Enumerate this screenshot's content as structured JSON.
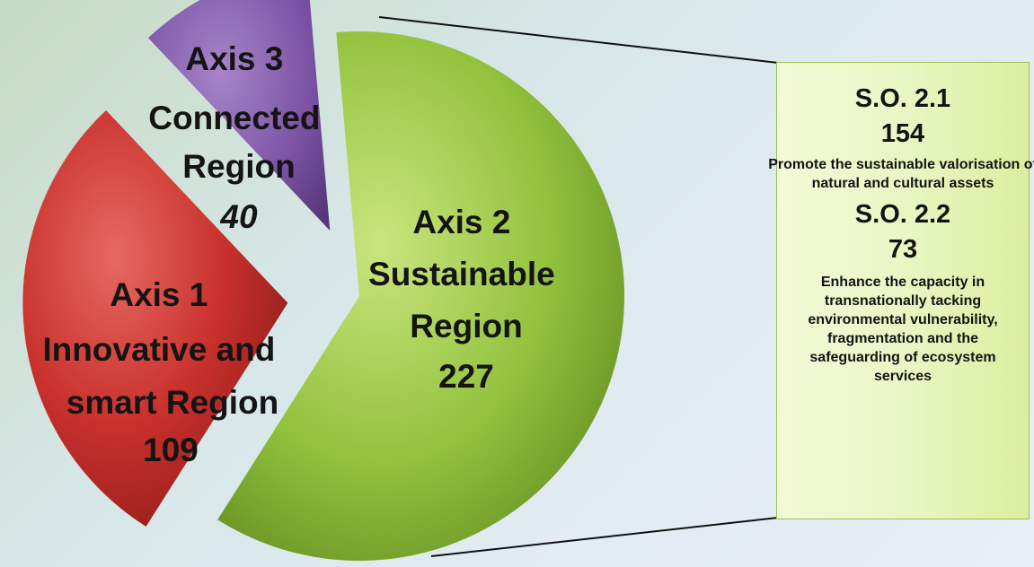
{
  "chart_data": {
    "type": "pie",
    "title": "",
    "slices": [
      {
        "label_lines": [
          "Axis 1",
          "Innovative and",
          "smart Region"
        ],
        "value": 109,
        "value_text": "109",
        "color": "#c9302c",
        "exploded": true
      },
      {
        "label_lines": [
          "Axis 2",
          "Sustainable",
          "Region"
        ],
        "value": 227,
        "value_text": "227",
        "color": "#8fc03a",
        "exploded": false
      },
      {
        "label_lines": [
          "Axis  3",
          "Connected",
          "Region"
        ],
        "value": 40,
        "value_text": "40",
        "color": "#7d54a6",
        "exploded": true
      }
    ],
    "breakdown": {
      "of_slice": "Axis 2",
      "items": [
        {
          "code": "S.O. 2.1",
          "value": 154,
          "value_text": "154",
          "description": "Promote the sustainable valorisation of natural and cultural assets"
        },
        {
          "code": "S.O. 2.2",
          "value": 73,
          "value_text": "73",
          "description": "Enhance the capacity in transnationally tacking environmental vulnerability, fragmentation and the safeguarding of ecosystem services"
        }
      ]
    }
  }
}
